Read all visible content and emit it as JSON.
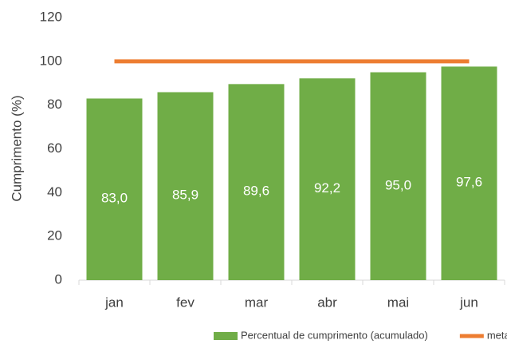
{
  "chart_data": {
    "type": "bar",
    "y_label": "Cumprimento (%)",
    "categories": [
      "jan",
      "fev",
      "mar",
      "abr",
      "mai",
      "jun"
    ],
    "series": [
      {
        "name": "Percentual de cumprimento (acumulado)",
        "type": "bar",
        "color": "#70ad47",
        "values": [
          83.0,
          85.9,
          89.6,
          92.2,
          95.0,
          97.6
        ],
        "value_labels": [
          "83,0",
          "85,9",
          "89,6",
          "92,2",
          "95,0",
          "97,6"
        ]
      },
      {
        "name": "meta",
        "type": "line",
        "color": "#ed7d31",
        "values": [
          100,
          100,
          100,
          100,
          100,
          100
        ]
      }
    ],
    "ylim": [
      0,
      120
    ],
    "yticks": [
      0,
      20,
      40,
      60,
      80,
      100,
      120
    ],
    "grid": false
  }
}
